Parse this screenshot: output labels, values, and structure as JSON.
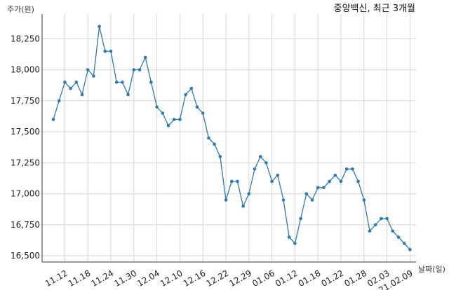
{
  "chart_data": {
    "type": "line",
    "title": "중앙백신, 최근 3개월",
    "ylabel": "주가(원)",
    "xlabel": "날짜(일)",
    "ylim": [
      16450,
      18450
    ],
    "yticks": [
      16500,
      16750,
      17000,
      17250,
      17500,
      17750,
      18000,
      18250
    ],
    "ytick_labels": [
      "16,500",
      "16,750",
      "17,000",
      "17,250",
      "17,500",
      "17,750",
      "18,000",
      "18,250"
    ],
    "xtick_labels": [
      "11.12",
      "11.18",
      "11.24",
      "11.30",
      "12.04",
      "12.10",
      "12.16",
      "12.22",
      "12.29",
      "01.06",
      "01.12",
      "01.18",
      "01.22",
      "01.28",
      "02.03",
      "21.02.09"
    ],
    "xtick_index": [
      2,
      6,
      10,
      14,
      18,
      22,
      26,
      30,
      34,
      38,
      42,
      46,
      50,
      54,
      58,
      62
    ],
    "grid": true,
    "series": [
      {
        "values": [
          17600,
          17750,
          17900,
          17850,
          17900,
          17800,
          18000,
          17950,
          18350,
          18150,
          18150,
          17900,
          17900,
          17800,
          18000,
          18000,
          18100,
          17900,
          17700,
          17650,
          17550,
          17600,
          17600,
          17800,
          17850,
          17700,
          17650,
          17450,
          17400,
          17300,
          16950,
          17100,
          17100,
          16900,
          17000,
          17200,
          17300,
          17250,
          17100,
          17150,
          16950,
          16650,
          16600,
          16800,
          17000,
          16950,
          17050,
          17050,
          17100,
          17150,
          17100,
          17200,
          17200,
          17100,
          16950,
          16700,
          16750,
          16800,
          16800,
          16700,
          16650,
          16600,
          16550
        ],
        "color": "#2f7ab0"
      }
    ]
  }
}
